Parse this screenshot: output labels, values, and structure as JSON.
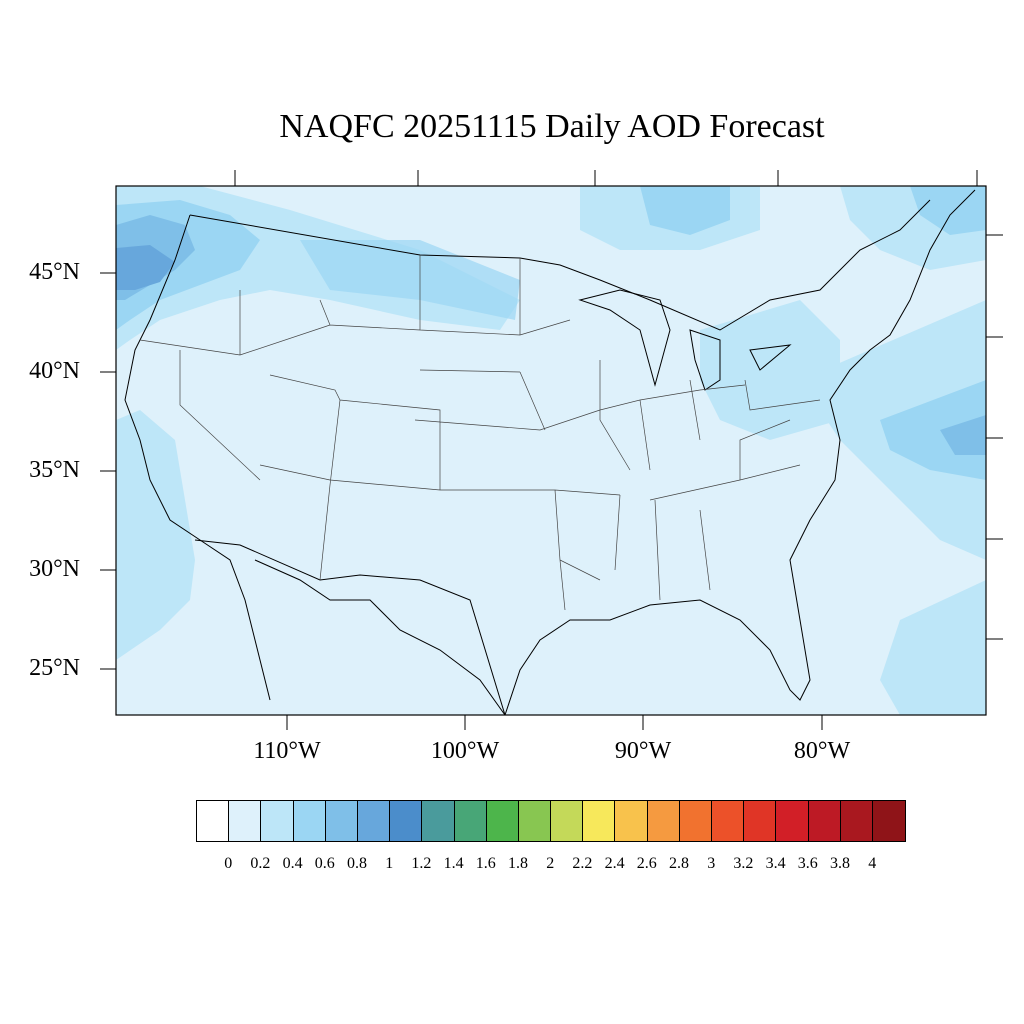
{
  "title": "NAQFC 20251115 Daily AOD Forecast",
  "lat_labels": [
    "45°N",
    "40°N",
    "35°N",
    "30°N",
    "25°N"
  ],
  "lon_labels": [
    "110°W",
    "100°W",
    "90°W",
    "80°W"
  ],
  "colorbar": {
    "colors": [
      "#ffffff",
      "#def1fb",
      "#bde6f8",
      "#9bd6f3",
      "#7fbfe8",
      "#67a7dc",
      "#4b8dcb",
      "#4a9b9c",
      "#48a677",
      "#4db54b",
      "#88c651",
      "#c4d959",
      "#f7e85b",
      "#f8c24c",
      "#f59a40",
      "#f1722f",
      "#ec5129",
      "#e03526",
      "#d21f27",
      "#bd1a25",
      "#a9181f",
      "#8f1418"
    ],
    "labels": [
      "0",
      "0.2",
      "0.4",
      "0.6",
      "0.8",
      "1",
      "1.2",
      "1.4",
      "1.6",
      "1.8",
      "2",
      "2.2",
      "2.4",
      "2.6",
      "2.8",
      "3",
      "3.2",
      "3.4",
      "3.6",
      "3.8",
      "4"
    ]
  }
}
